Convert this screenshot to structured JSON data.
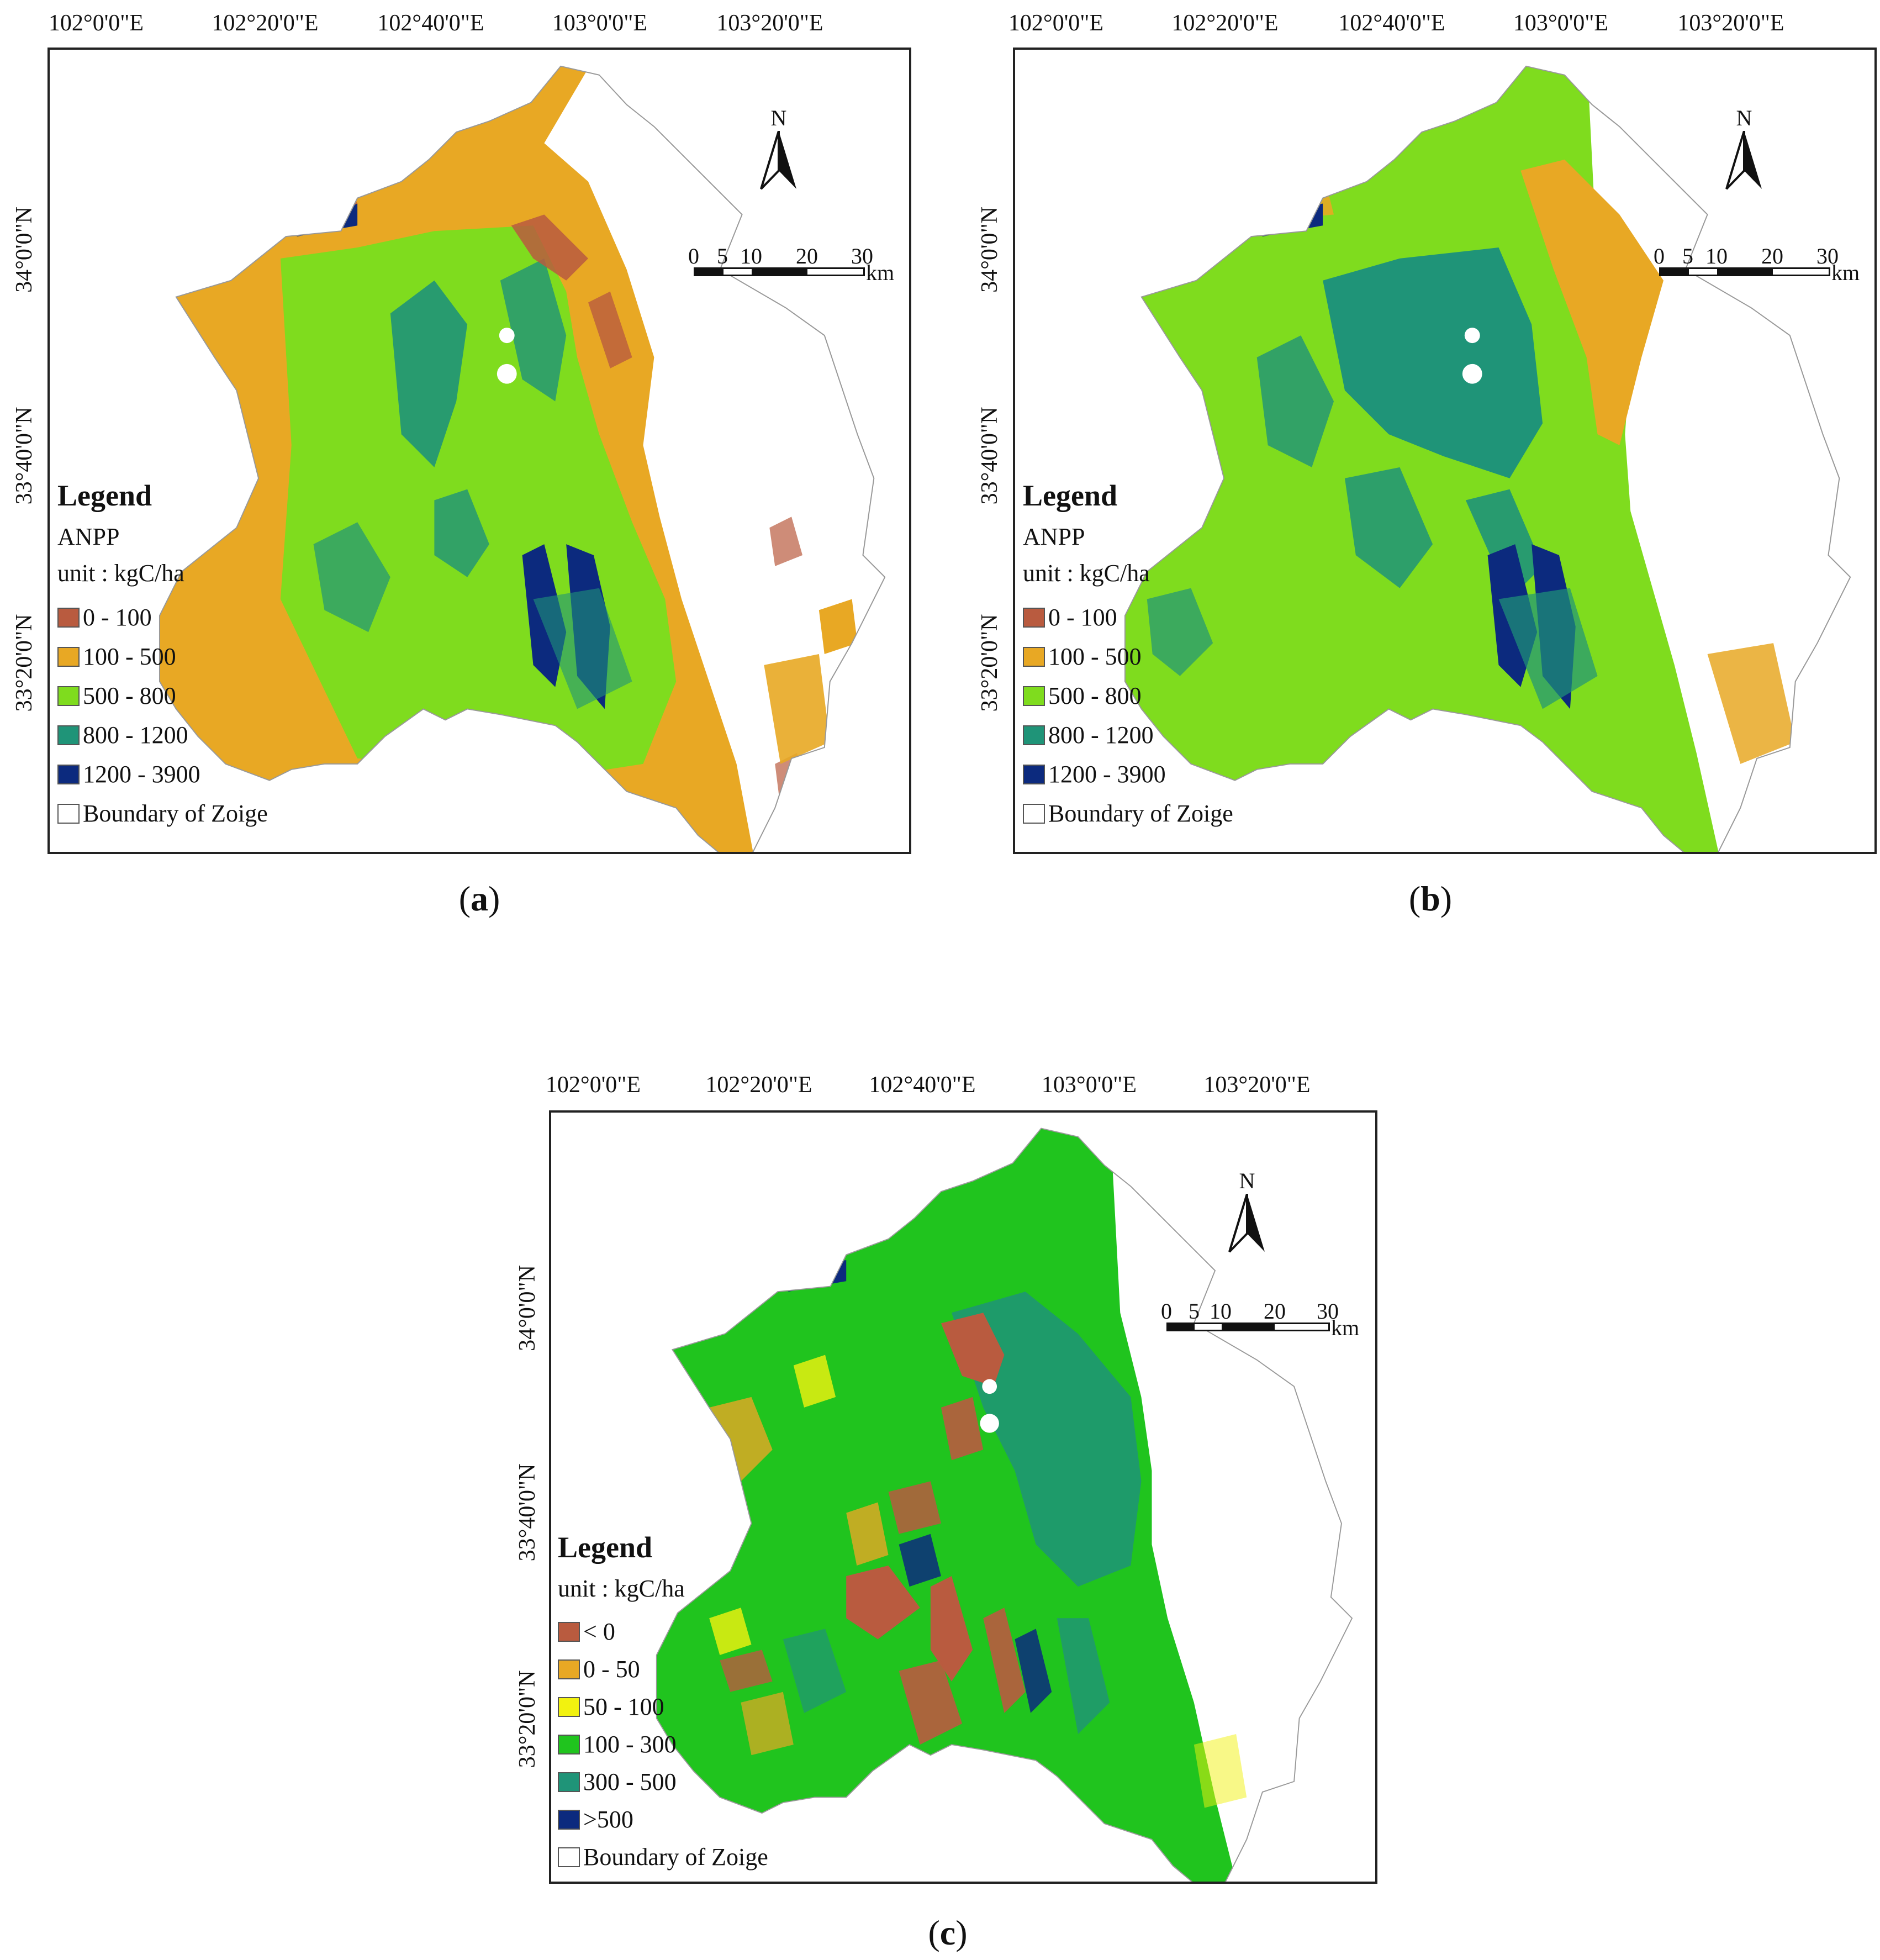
{
  "lon_labels": [
    "102°0'0\"E",
    "102°20'0\"E",
    "102°40'0\"E",
    "103°0'0\"E",
    "103°20'0\"E"
  ],
  "lat_labels": [
    "34°0'0\"N",
    "33°40'0\"N",
    "33°20'0\"N"
  ],
  "scale_numbers": [
    "0",
    "5",
    "10",
    "20",
    "30"
  ],
  "scale_unit": "km",
  "north_label": "N",
  "colors": {
    "red": "#b95b3f",
    "orange": "#e8a824",
    "yellow": "#f2f20f",
    "lime": "#7fdc1e",
    "green": "#20c41e",
    "teal": "#1f9478",
    "navy": "#0c2a7e",
    "white": "#ffffff"
  },
  "panels": [
    {
      "caption_letter": "a",
      "legend": {
        "title": "Legend",
        "variable": "ANPP",
        "unit": "unit : kgC/ha",
        "items": [
          {
            "label": "0 - 100",
            "color": "#b95b3f"
          },
          {
            "label": "100 - 500",
            "color": "#e8a824"
          },
          {
            "label": "500 - 800",
            "color": "#7fdc1e"
          },
          {
            "label": "800 - 1200",
            "color": "#1f9478"
          },
          {
            "label": "1200 - 3900",
            "color": "#0c2a7e"
          },
          {
            "label": "Boundary of Zoige",
            "color": "#ffffff"
          }
        ]
      }
    },
    {
      "caption_letter": "b",
      "legend": {
        "title": "Legend",
        "variable": "ANPP",
        "unit": "unit : kgC/ha",
        "items": [
          {
            "label": "0 - 100",
            "color": "#b95b3f"
          },
          {
            "label": "100 - 500",
            "color": "#e8a824"
          },
          {
            "label": "500 - 800",
            "color": "#7fdc1e"
          },
          {
            "label": "800 - 1200",
            "color": "#1f9478"
          },
          {
            "label": "1200 - 3900",
            "color": "#0c2a7e"
          },
          {
            "label": "Boundary of Zoige",
            "color": "#ffffff"
          }
        ]
      }
    },
    {
      "caption_letter": "c",
      "legend": {
        "title": "Legend",
        "unit": "unit : kgC/ha",
        "items": [
          {
            "label": "< 0",
            "color": "#b95b3f"
          },
          {
            "label": "0 - 50",
            "color": "#e8a824"
          },
          {
            "label": "50 - 100",
            "color": "#f2f20f"
          },
          {
            "label": "100 - 300",
            "color": "#20c41e"
          },
          {
            "label": "300 - 500",
            "color": "#1f9478"
          },
          {
            "label": ">500",
            "color": "#0c2a7e"
          },
          {
            "label": "Boundary of Zoige",
            "color": "#ffffff"
          }
        ]
      }
    }
  ]
}
